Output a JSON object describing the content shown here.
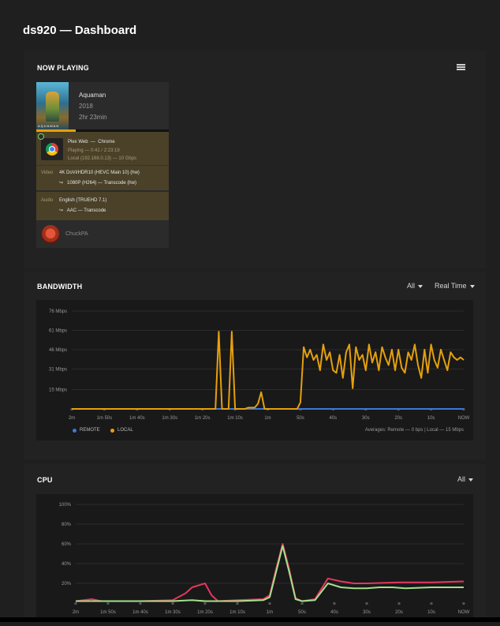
{
  "page": {
    "title": "ds920 — Dashboard"
  },
  "now_playing": {
    "section_title": "NOW PLAYING",
    "menu_icon": "list-icon",
    "media": {
      "title": "Aquaman",
      "year": "2018",
      "duration": "2hr 23min",
      "poster_text": "AQUAMAN",
      "progress_percent": 30
    },
    "player": {
      "app": "Plex Web",
      "dash": "—",
      "browser": "Chrome",
      "state": "Playing — 0:41 / 2:23:19",
      "network": "Local (192.168.0.13) — 10 Gbps"
    },
    "video": {
      "label": "Video",
      "source": "4K DoVi/HDR10 (HEVC Main 10) (hw)",
      "arrow": "↪",
      "target": "1080P (H264) — Transcode (hw)"
    },
    "audio": {
      "label": "Audio",
      "source": "English (TRUEHD 7.1)",
      "arrow": "↪",
      "target": "AAC — Transcode"
    },
    "user": {
      "name": "ChuckPA"
    }
  },
  "bandwidth": {
    "section_title": "BANDWIDTH",
    "filter_all": "All",
    "filter_time": "Real Time",
    "legend_remote": "REMOTE",
    "legend_local": "LOCAL",
    "averages": "Averages: Remote — 0 bps | Local — 15 Mbps"
  },
  "cpu": {
    "section_title": "CPU",
    "filter_all": "All"
  },
  "colors": {
    "remote": "#3c78d8",
    "local": "#e5a00d",
    "cpu_red": "#e5365f",
    "cpu_green": "#a4e08c"
  },
  "chart_data": [
    {
      "type": "line",
      "ylabels": [
        "76 Mbps",
        "61 Mbps",
        "46 Mbps",
        "31 Mbps",
        "15 Mbps"
      ],
      "yticks": [
        76,
        61,
        46,
        31,
        15
      ],
      "ylim": [
        0,
        76
      ],
      "xlabels": [
        "2m",
        "1m 50s",
        "1m 40s",
        "1m 30s",
        "1m 20s",
        "1m 10s",
        "1m",
        "50s",
        "40s",
        "30s",
        "20s",
        "10s",
        "NOW"
      ],
      "x": [
        120,
        110,
        100,
        90,
        80,
        70,
        60,
        50,
        40,
        30,
        20,
        10,
        0
      ],
      "series": [
        {
          "name": "REMOTE",
          "color": "#3c78d8",
          "points": [
            [
              120,
              0
            ],
            [
              0,
              0
            ]
          ]
        },
        {
          "name": "LOCAL",
          "color": "#e5a00d",
          "points": [
            [
              120,
              0
            ],
            [
              76,
              0
            ],
            [
              75,
              60
            ],
            [
              74,
              0
            ],
            [
              72,
              0
            ],
            [
              71,
              60
            ],
            [
              70,
              0
            ],
            [
              67,
              0
            ],
            [
              66,
              1
            ],
            [
              64,
              1
            ],
            [
              63,
              4
            ],
            [
              62,
              13
            ],
            [
              61,
              0
            ],
            [
              51,
              0
            ],
            [
              50,
              5
            ],
            [
              49,
              48
            ],
            [
              48,
              40
            ],
            [
              47,
              46
            ],
            [
              46,
              38
            ],
            [
              45,
              42
            ],
            [
              44,
              30
            ],
            [
              43,
              50
            ],
            [
              42,
              38
            ],
            [
              41,
              44
            ],
            [
              40,
              30
            ],
            [
              39,
              28
            ],
            [
              38,
              42
            ],
            [
              37,
              24
            ],
            [
              36,
              44
            ],
            [
              35,
              50
            ],
            [
              34,
              16
            ],
            [
              33,
              48
            ],
            [
              32,
              38
            ],
            [
              31,
              42
            ],
            [
              30,
              30
            ],
            [
              29,
              50
            ],
            [
              28,
              36
            ],
            [
              27,
              44
            ],
            [
              26,
              30
            ],
            [
              25,
              48
            ],
            [
              24,
              40
            ],
            [
              23,
              34
            ],
            [
              22,
              46
            ],
            [
              21,
              30
            ],
            [
              20,
              46
            ],
            [
              19,
              32
            ],
            [
              18,
              28
            ],
            [
              17,
              44
            ],
            [
              16,
              38
            ],
            [
              15,
              50
            ],
            [
              14,
              34
            ],
            [
              13,
              24
            ],
            [
              12,
              46
            ],
            [
              11,
              28
            ],
            [
              10,
              50
            ],
            [
              9,
              38
            ],
            [
              8,
              32
            ],
            [
              7,
              46
            ],
            [
              6,
              38
            ],
            [
              5,
              30
            ],
            [
              4,
              44
            ],
            [
              3,
              40
            ],
            [
              2,
              38
            ],
            [
              1,
              40
            ],
            [
              0,
              38
            ]
          ]
        }
      ]
    },
    {
      "type": "line",
      "ylabels": [
        "100%",
        "80%",
        "60%",
        "40%",
        "20%"
      ],
      "yticks": [
        100,
        80,
        60,
        40,
        20
      ],
      "ylim": [
        0,
        100
      ],
      "xlabels": [
        "2m",
        "1m 50s",
        "1m 40s",
        "1m 30s",
        "1m 20s",
        "1m 10s",
        "1m",
        "50s",
        "40s",
        "30s",
        "20s",
        "10s",
        "NOW"
      ],
      "x": [
        120,
        110,
        100,
        90,
        80,
        70,
        60,
        50,
        40,
        30,
        20,
        10,
        0
      ],
      "series": [
        {
          "name": "CPU",
          "color": "#e5365f",
          "points": [
            [
              120,
              2
            ],
            [
              115,
              4
            ],
            [
              112,
              2
            ],
            [
              100,
              2
            ],
            [
              90,
              3
            ],
            [
              86,
              10
            ],
            [
              84,
              16
            ],
            [
              80,
              20
            ],
            [
              78,
              8
            ],
            [
              76,
              2
            ],
            [
              70,
              3
            ],
            [
              62,
              4
            ],
            [
              60,
              8
            ],
            [
              58,
              35
            ],
            [
              56,
              60
            ],
            [
              54,
              35
            ],
            [
              52,
              5
            ],
            [
              50,
              2
            ],
            [
              46,
              4
            ],
            [
              42,
              25
            ],
            [
              38,
              22
            ],
            [
              34,
              20
            ],
            [
              30,
              20
            ],
            [
              20,
              21
            ],
            [
              10,
              21
            ],
            [
              0,
              22
            ]
          ]
        },
        {
          "name": "CPU",
          "color": "#a4e08c",
          "points": [
            [
              120,
              2
            ],
            [
              100,
              2
            ],
            [
              90,
              2
            ],
            [
              84,
              3
            ],
            [
              80,
              2
            ],
            [
              70,
              2
            ],
            [
              62,
              3
            ],
            [
              60,
              6
            ],
            [
              58,
              32
            ],
            [
              56,
              58
            ],
            [
              54,
              32
            ],
            [
              52,
              4
            ],
            [
              50,
              2
            ],
            [
              46,
              3
            ],
            [
              42,
              20
            ],
            [
              38,
              16
            ],
            [
              34,
              15
            ],
            [
              30,
              15
            ],
            [
              26,
              16
            ],
            [
              22,
              16
            ],
            [
              18,
              15
            ],
            [
              10,
              16
            ],
            [
              0,
              16
            ]
          ]
        }
      ]
    }
  ]
}
